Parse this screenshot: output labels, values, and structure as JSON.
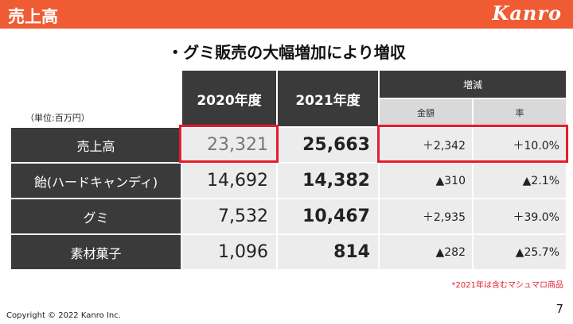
{
  "header": {
    "title": "売上高",
    "brand": "Kanro"
  },
  "subtitle": "・グミ販売の大幅増加により増収",
  "unit": "（単位:百万円）",
  "table": {
    "col_2020": "2020年度",
    "col_2021": "2021年度",
    "col_change": "増減",
    "col_amount": "金額",
    "col_rate": "率",
    "rows": [
      {
        "label": "売上高",
        "v2020": "23,321",
        "v2021": "25,663",
        "amount": "＋2,342",
        "rate": "＋10.0%"
      },
      {
        "label": "飴(ハードキャンディ)",
        "v2020": "14,692",
        "v2021": "14,382",
        "amount": "▲310",
        "rate": "▲2.1%"
      },
      {
        "label": "グミ",
        "v2020": "7,532",
        "v2021": "10,467",
        "amount": "＋2,935",
        "rate": "＋39.0%"
      },
      {
        "label": "素材菓子",
        "v2020": "1,096",
        "v2021": "814",
        "amount": "▲282",
        "rate": "▲25.7%"
      }
    ]
  },
  "footnote": "*2021年は含むマシュマロ商品",
  "copyright": "Copyright © 2022 Kanro Inc.",
  "page_number": "7",
  "colors": {
    "header": "#ef5b33",
    "highlight": "#e51d2c",
    "dark_cell": "#3a3a3a",
    "data_cell": "#ececec"
  }
}
